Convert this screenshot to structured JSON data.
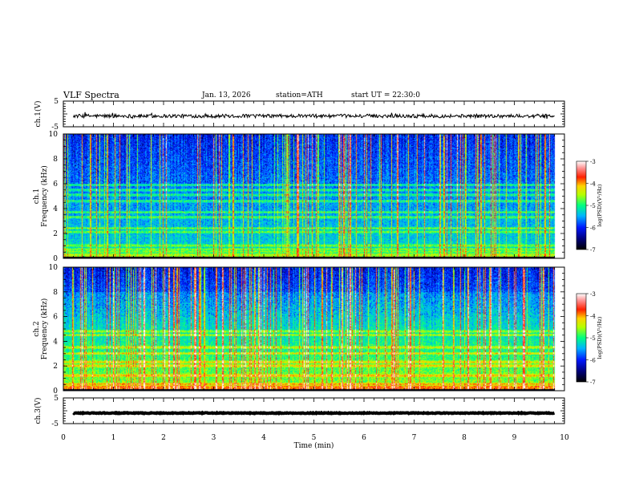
{
  "header": {
    "title": "VLF Spectra",
    "date": "Jan. 13, 2026",
    "station": "station=ATH",
    "start": "start UT =  22:30:0"
  },
  "chart_data": [
    {
      "type": "line",
      "name": "ch1-waveform",
      "ylabel": "ch.1(V)",
      "ylim": [
        -5,
        5
      ],
      "yticks": [
        "5",
        "-5"
      ],
      "xlim": [
        0,
        10
      ],
      "baseline": -0.8,
      "noise_amplitude": 0.7,
      "data_end_min": 9.8,
      "color": "#000000"
    },
    {
      "type": "heatmap",
      "name": "ch1-spectrogram",
      "ylabel": "Frequency (kHz)",
      "channel_label": "ch.1",
      "xlim": [
        0,
        10
      ],
      "ylim": [
        0,
        10
      ],
      "yticks": [
        "0",
        "2",
        "4",
        "6",
        "8",
        "10"
      ],
      "data_end_min": 9.8,
      "colorbar": {
        "label": "log(PSD)(V²/Hz)",
        "ticks": [
          "-3",
          "-4",
          "-5",
          "-6",
          "-7"
        ],
        "range": [
          -7,
          -3
        ]
      },
      "bands_khz": [
        0.5,
        0.7,
        1.0,
        2.1,
        2.4,
        3.3,
        3.7,
        4.6,
        5.1,
        5.5,
        5.9
      ]
    },
    {
      "type": "heatmap",
      "name": "ch2-spectrogram",
      "ylabel": "Frequency (kHz)",
      "channel_label": "ch.2",
      "xlim": [
        0,
        10
      ],
      "ylim": [
        0,
        10
      ],
      "yticks": [
        "0",
        "2",
        "4",
        "6",
        "8",
        "10"
      ],
      "data_end_min": 9.8,
      "colorbar": {
        "label": "log(PSD)(V²/Hz)",
        "ticks": [
          "-3",
          "-4",
          "-5",
          "-6",
          "-7"
        ],
        "range": [
          -7,
          -3
        ]
      },
      "bands_khz": [
        0.5,
        1.2,
        2.0,
        2.3,
        3.0,
        3.5,
        4.5,
        4.8
      ]
    },
    {
      "type": "line",
      "name": "ch3-waveform",
      "ylabel": "ch.3(V)",
      "ylim": [
        -5,
        5
      ],
      "yticks": [
        "5",
        "-5"
      ],
      "xlim": [
        0,
        10
      ],
      "baseline": -0.9,
      "noise_amplitude": 0.15,
      "data_end_min": 9.8,
      "color": "#000000"
    }
  ],
  "xaxis": {
    "label": "Time (min)",
    "ticks": [
      "0",
      "1",
      "2",
      "3",
      "4",
      "5",
      "6",
      "7",
      "8",
      "9",
      "10"
    ]
  }
}
